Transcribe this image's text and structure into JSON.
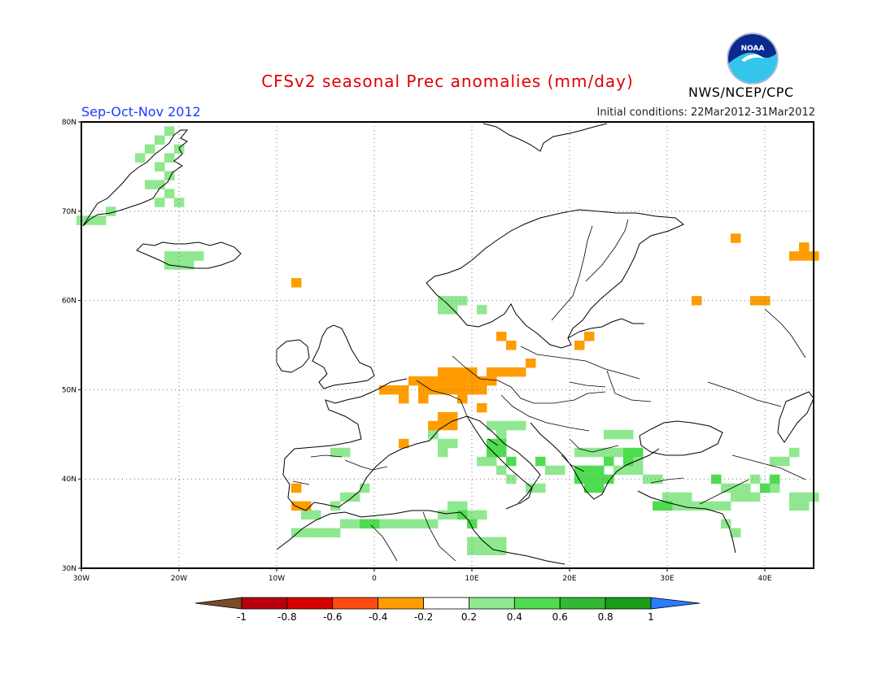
{
  "title": "CFSv2 seasonal Prec anomalies (mm/day)",
  "season": "Sep-Oct-Nov 2012",
  "initial_conditions": "Initial conditions: 22Mar2012-31Mar2012",
  "agency": "NWS/NCEP/CPC",
  "logo_text": "NOAA",
  "map": {
    "lon_range": [
      -30,
      45
    ],
    "lat_range": [
      30,
      80
    ],
    "lon_ticks": [
      "30W",
      "20W",
      "10W",
      "0",
      "10E",
      "20E",
      "30E",
      "40E"
    ],
    "lat_ticks": [
      "30N",
      "40N",
      "50N",
      "60N",
      "70N",
      "80N"
    ],
    "grid": true
  },
  "colorbar": {
    "labels": [
      "-1",
      "-0.8",
      "-0.6",
      "-0.4",
      "-0.2",
      "0.2",
      "0.4",
      "0.6",
      "0.8",
      "1"
    ],
    "colors": [
      "#7a4a2a",
      "#b8000d",
      "#d90000",
      "#ff4a10",
      "#ff9c00",
      "#ffffff",
      "#8fe88f",
      "#50dc50",
      "#32b832",
      "#1a9e1a",
      "#2a7bff"
    ]
  },
  "colors": {
    "dry_moderate": "#ff9c00",
    "wet_light": "#8fe88f",
    "wet_moderate": "#50dc50",
    "title_red": "#e00000",
    "season_blue": "#1a3cff"
  },
  "anomaly_cells": {
    "dry": [
      [
        1,
        50
      ],
      [
        2,
        50
      ],
      [
        3,
        50
      ],
      [
        3,
        49
      ],
      [
        4,
        51
      ],
      [
        5,
        51
      ],
      [
        5,
        50
      ],
      [
        5,
        49
      ],
      [
        6,
        50
      ],
      [
        6,
        51
      ],
      [
        7,
        50
      ],
      [
        7,
        51
      ],
      [
        7,
        52
      ],
      [
        8,
        50
      ],
      [
        8,
        51
      ],
      [
        8,
        52
      ],
      [
        9,
        50
      ],
      [
        9,
        51
      ],
      [
        9,
        52
      ],
      [
        9,
        49
      ],
      [
        10,
        51
      ],
      [
        10,
        50
      ],
      [
        10,
        52
      ],
      [
        11,
        50
      ],
      [
        11,
        51
      ],
      [
        11,
        48
      ],
      [
        12,
        52
      ],
      [
        12,
        51
      ],
      [
        13,
        52
      ],
      [
        14,
        52
      ],
      [
        15,
        52
      ],
      [
        16,
        53
      ],
      [
        14,
        55
      ],
      [
        13,
        56
      ],
      [
        21,
        55
      ],
      [
        22,
        56
      ],
      [
        6,
        46
      ],
      [
        7,
        46
      ],
      [
        7,
        47
      ],
      [
        8,
        46
      ],
      [
        8,
        47
      ],
      [
        3,
        44
      ],
      [
        -8,
        37
      ],
      [
        -7,
        37
      ],
      [
        -8,
        39
      ],
      [
        39,
        60
      ],
      [
        40,
        60
      ],
      [
        33,
        60
      ],
      [
        37,
        67
      ],
      [
        43,
        65
      ],
      [
        44,
        65
      ],
      [
        44,
        66
      ],
      [
        45,
        65
      ],
      [
        -8,
        62
      ]
    ],
    "wet_light": [
      [
        -21,
        79
      ],
      [
        -22,
        78
      ],
      [
        -23,
        77
      ],
      [
        -24,
        76
      ],
      [
        -20,
        77
      ],
      [
        -21,
        76
      ],
      [
        -22,
        75
      ],
      [
        -21,
        74
      ],
      [
        -22,
        73
      ],
      [
        -23,
        73
      ],
      [
        -21,
        72
      ],
      [
        -22,
        71
      ],
      [
        -27,
        70
      ],
      [
        -28,
        69
      ],
      [
        -29,
        69
      ],
      [
        -30,
        69
      ],
      [
        -20,
        71
      ],
      [
        -18,
        65
      ],
      [
        -19,
        65
      ],
      [
        -20,
        65
      ],
      [
        -21,
        65
      ],
      [
        -21,
        64
      ],
      [
        -20,
        64
      ],
      [
        -19,
        64
      ],
      [
        7,
        60
      ],
      [
        8,
        60
      ],
      [
        9,
        60
      ],
      [
        7,
        59
      ],
      [
        8,
        59
      ],
      [
        11,
        59
      ],
      [
        12,
        46
      ],
      [
        13,
        46
      ],
      [
        14,
        46
      ],
      [
        15,
        46
      ],
      [
        13,
        45
      ],
      [
        6,
        45
      ],
      [
        7,
        44
      ],
      [
        8,
        44
      ],
      [
        7,
        43
      ],
      [
        11,
        42
      ],
      [
        12,
        42
      ],
      [
        13,
        41
      ],
      [
        14,
        40
      ],
      [
        16,
        39
      ],
      [
        17,
        39
      ],
      [
        18,
        41
      ],
      [
        19,
        41
      ],
      [
        21,
        43
      ],
      [
        22,
        43
      ],
      [
        23,
        43
      ],
      [
        24,
        43
      ],
      [
        25,
        43
      ],
      [
        26,
        42
      ],
      [
        27,
        42
      ],
      [
        25,
        41
      ],
      [
        26,
        41
      ],
      [
        27,
        41
      ],
      [
        28,
        40
      ],
      [
        29,
        40
      ],
      [
        30,
        38
      ],
      [
        31,
        38
      ],
      [
        32,
        38
      ],
      [
        30,
        37
      ],
      [
        31,
        37
      ],
      [
        32,
        37
      ],
      [
        33,
        37
      ],
      [
        34,
        37
      ],
      [
        35,
        37
      ],
      [
        36,
        37
      ],
      [
        37,
        38
      ],
      [
        38,
        38
      ],
      [
        39,
        38
      ],
      [
        40,
        39
      ],
      [
        41,
        39
      ],
      [
        36,
        39
      ],
      [
        37,
        39
      ],
      [
        38,
        39
      ],
      [
        39,
        40
      ],
      [
        43,
        38
      ],
      [
        44,
        38
      ],
      [
        45,
        38
      ],
      [
        43,
        37
      ],
      [
        44,
        37
      ],
      [
        41,
        42
      ],
      [
        42,
        42
      ],
      [
        43,
        43
      ],
      [
        24,
        45
      ],
      [
        25,
        45
      ],
      [
        26,
        45
      ],
      [
        -4,
        43
      ],
      [
        -3,
        43
      ],
      [
        -1,
        39
      ],
      [
        -2,
        38
      ],
      [
        -3,
        38
      ],
      [
        -4,
        37
      ],
      [
        -6,
        36
      ],
      [
        -7,
        36
      ],
      [
        -8,
        34
      ],
      [
        -7,
        34
      ],
      [
        -6,
        34
      ],
      [
        -5,
        34
      ],
      [
        -4,
        34
      ],
      [
        -3,
        35
      ],
      [
        -2,
        35
      ],
      [
        -1,
        35
      ],
      [
        0,
        35
      ],
      [
        1,
        35
      ],
      [
        2,
        35
      ],
      [
        3,
        35
      ],
      [
        4,
        35
      ],
      [
        5,
        35
      ],
      [
        6,
        35
      ],
      [
        7,
        36
      ],
      [
        8,
        36
      ],
      [
        9,
        36
      ],
      [
        10,
        36
      ],
      [
        11,
        36
      ],
      [
        9,
        37
      ],
      [
        8,
        37
      ],
      [
        10,
        33
      ],
      [
        11,
        33
      ],
      [
        12,
        33
      ],
      [
        13,
        33
      ],
      [
        10,
        32
      ],
      [
        11,
        32
      ],
      [
        12,
        32
      ],
      [
        13,
        32
      ],
      [
        36,
        35
      ],
      [
        37,
        34
      ]
    ],
    "wet_moderate": [
      [
        12,
        44
      ],
      [
        13,
        44
      ],
      [
        12,
        43
      ],
      [
        13,
        43
      ],
      [
        14,
        42
      ],
      [
        21,
        41
      ],
      [
        22,
        41
      ],
      [
        23,
        41
      ],
      [
        22,
        40
      ],
      [
        23,
        40
      ],
      [
        24,
        40
      ],
      [
        22,
        39
      ],
      [
        23,
        39
      ],
      [
        21,
        40
      ],
      [
        24,
        42
      ],
      [
        26,
        43
      ],
      [
        27,
        43
      ],
      [
        26,
        42
      ],
      [
        35,
        40
      ],
      [
        40,
        39
      ],
      [
        41,
        40
      ],
      [
        29,
        37
      ],
      [
        30,
        37
      ],
      [
        -1,
        35
      ],
      [
        0,
        35
      ],
      [
        9,
        36
      ],
      [
        10,
        35
      ],
      [
        17,
        42
      ]
    ]
  }
}
